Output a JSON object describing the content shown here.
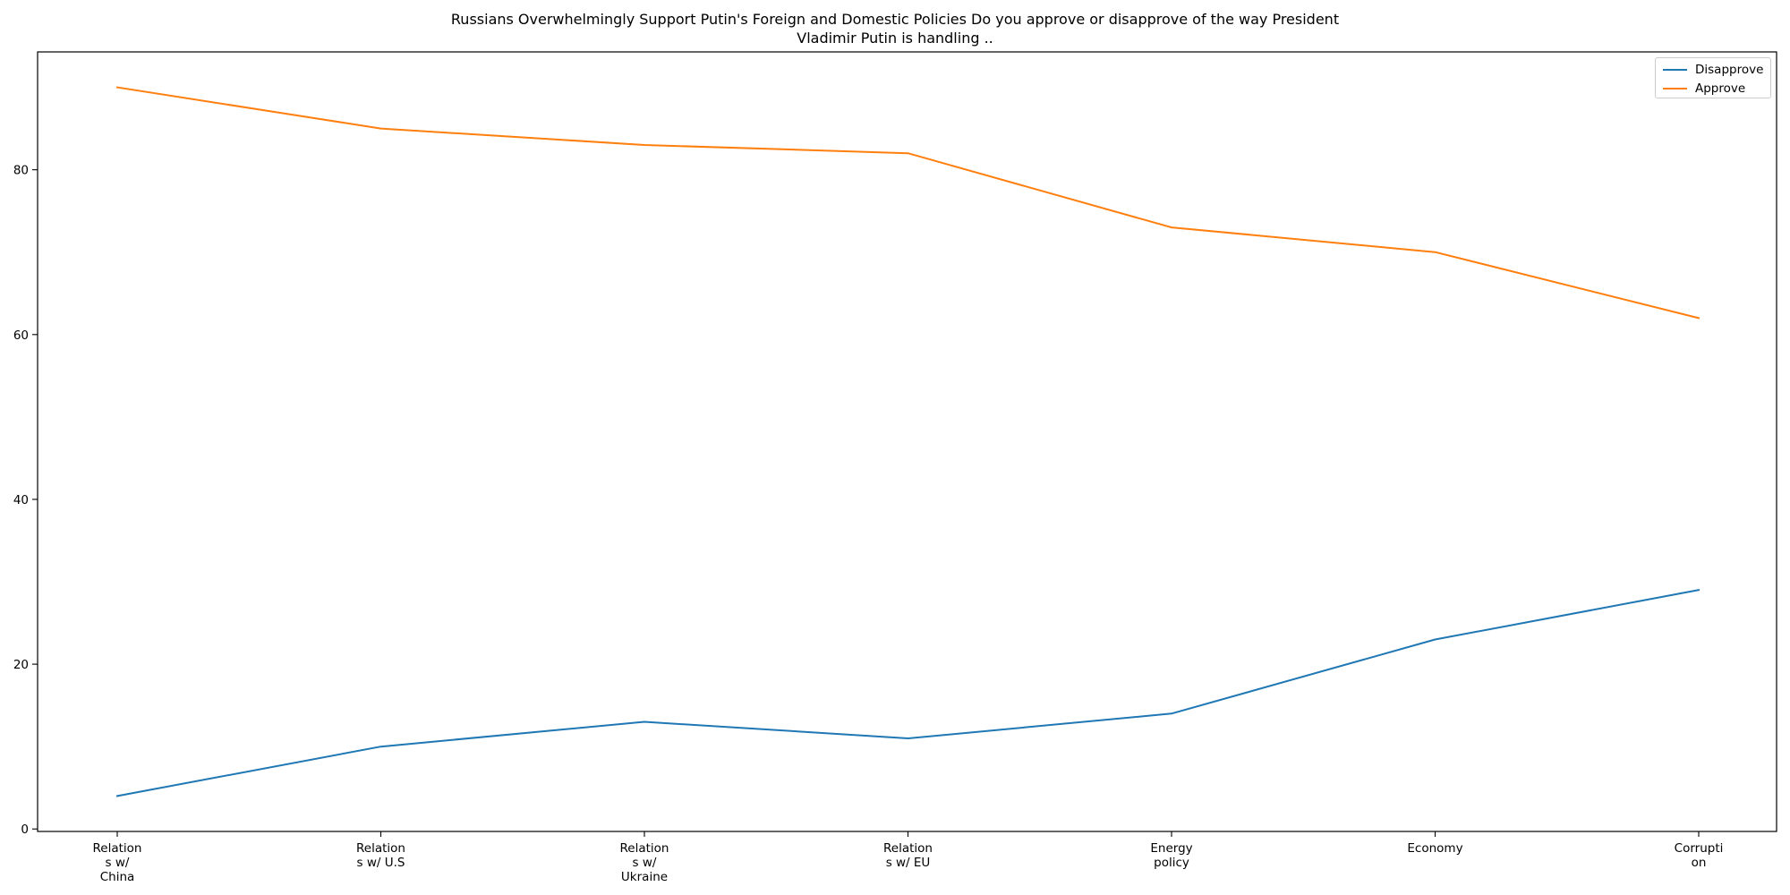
{
  "chart_data": {
    "type": "line",
    "title_lines": [
      "Russians Overwhelmingly Support Putin's Foreign and Domestic Policies Do you approve or disapprove of the way President",
      "Vladimir Putin is handling .."
    ],
    "categories": [
      [
        "Relation",
        "s w/",
        "China"
      ],
      [
        "Relation",
        "s w/ U.S"
      ],
      [
        "Relation",
        "s w/",
        "Ukraine"
      ],
      [
        "Relation",
        "s w/ EU"
      ],
      [
        "Energy",
        "policy"
      ],
      [
        "Economy"
      ],
      [
        "Corrupti",
        "on"
      ]
    ],
    "series": [
      {
        "name": "Disapprove",
        "color": "#1f77b4",
        "values": [
          4,
          10,
          13,
          11,
          14,
          23,
          29
        ]
      },
      {
        "name": "Approve",
        "color": "#ff7f0e",
        "values": [
          90,
          85,
          83,
          82,
          73,
          70,
          62
        ]
      }
    ],
    "ylim": [
      -0.3,
      94.3
    ],
    "yticks": [
      0,
      20,
      40,
      60,
      80
    ],
    "grid": false,
    "legend_position": "top-right"
  }
}
